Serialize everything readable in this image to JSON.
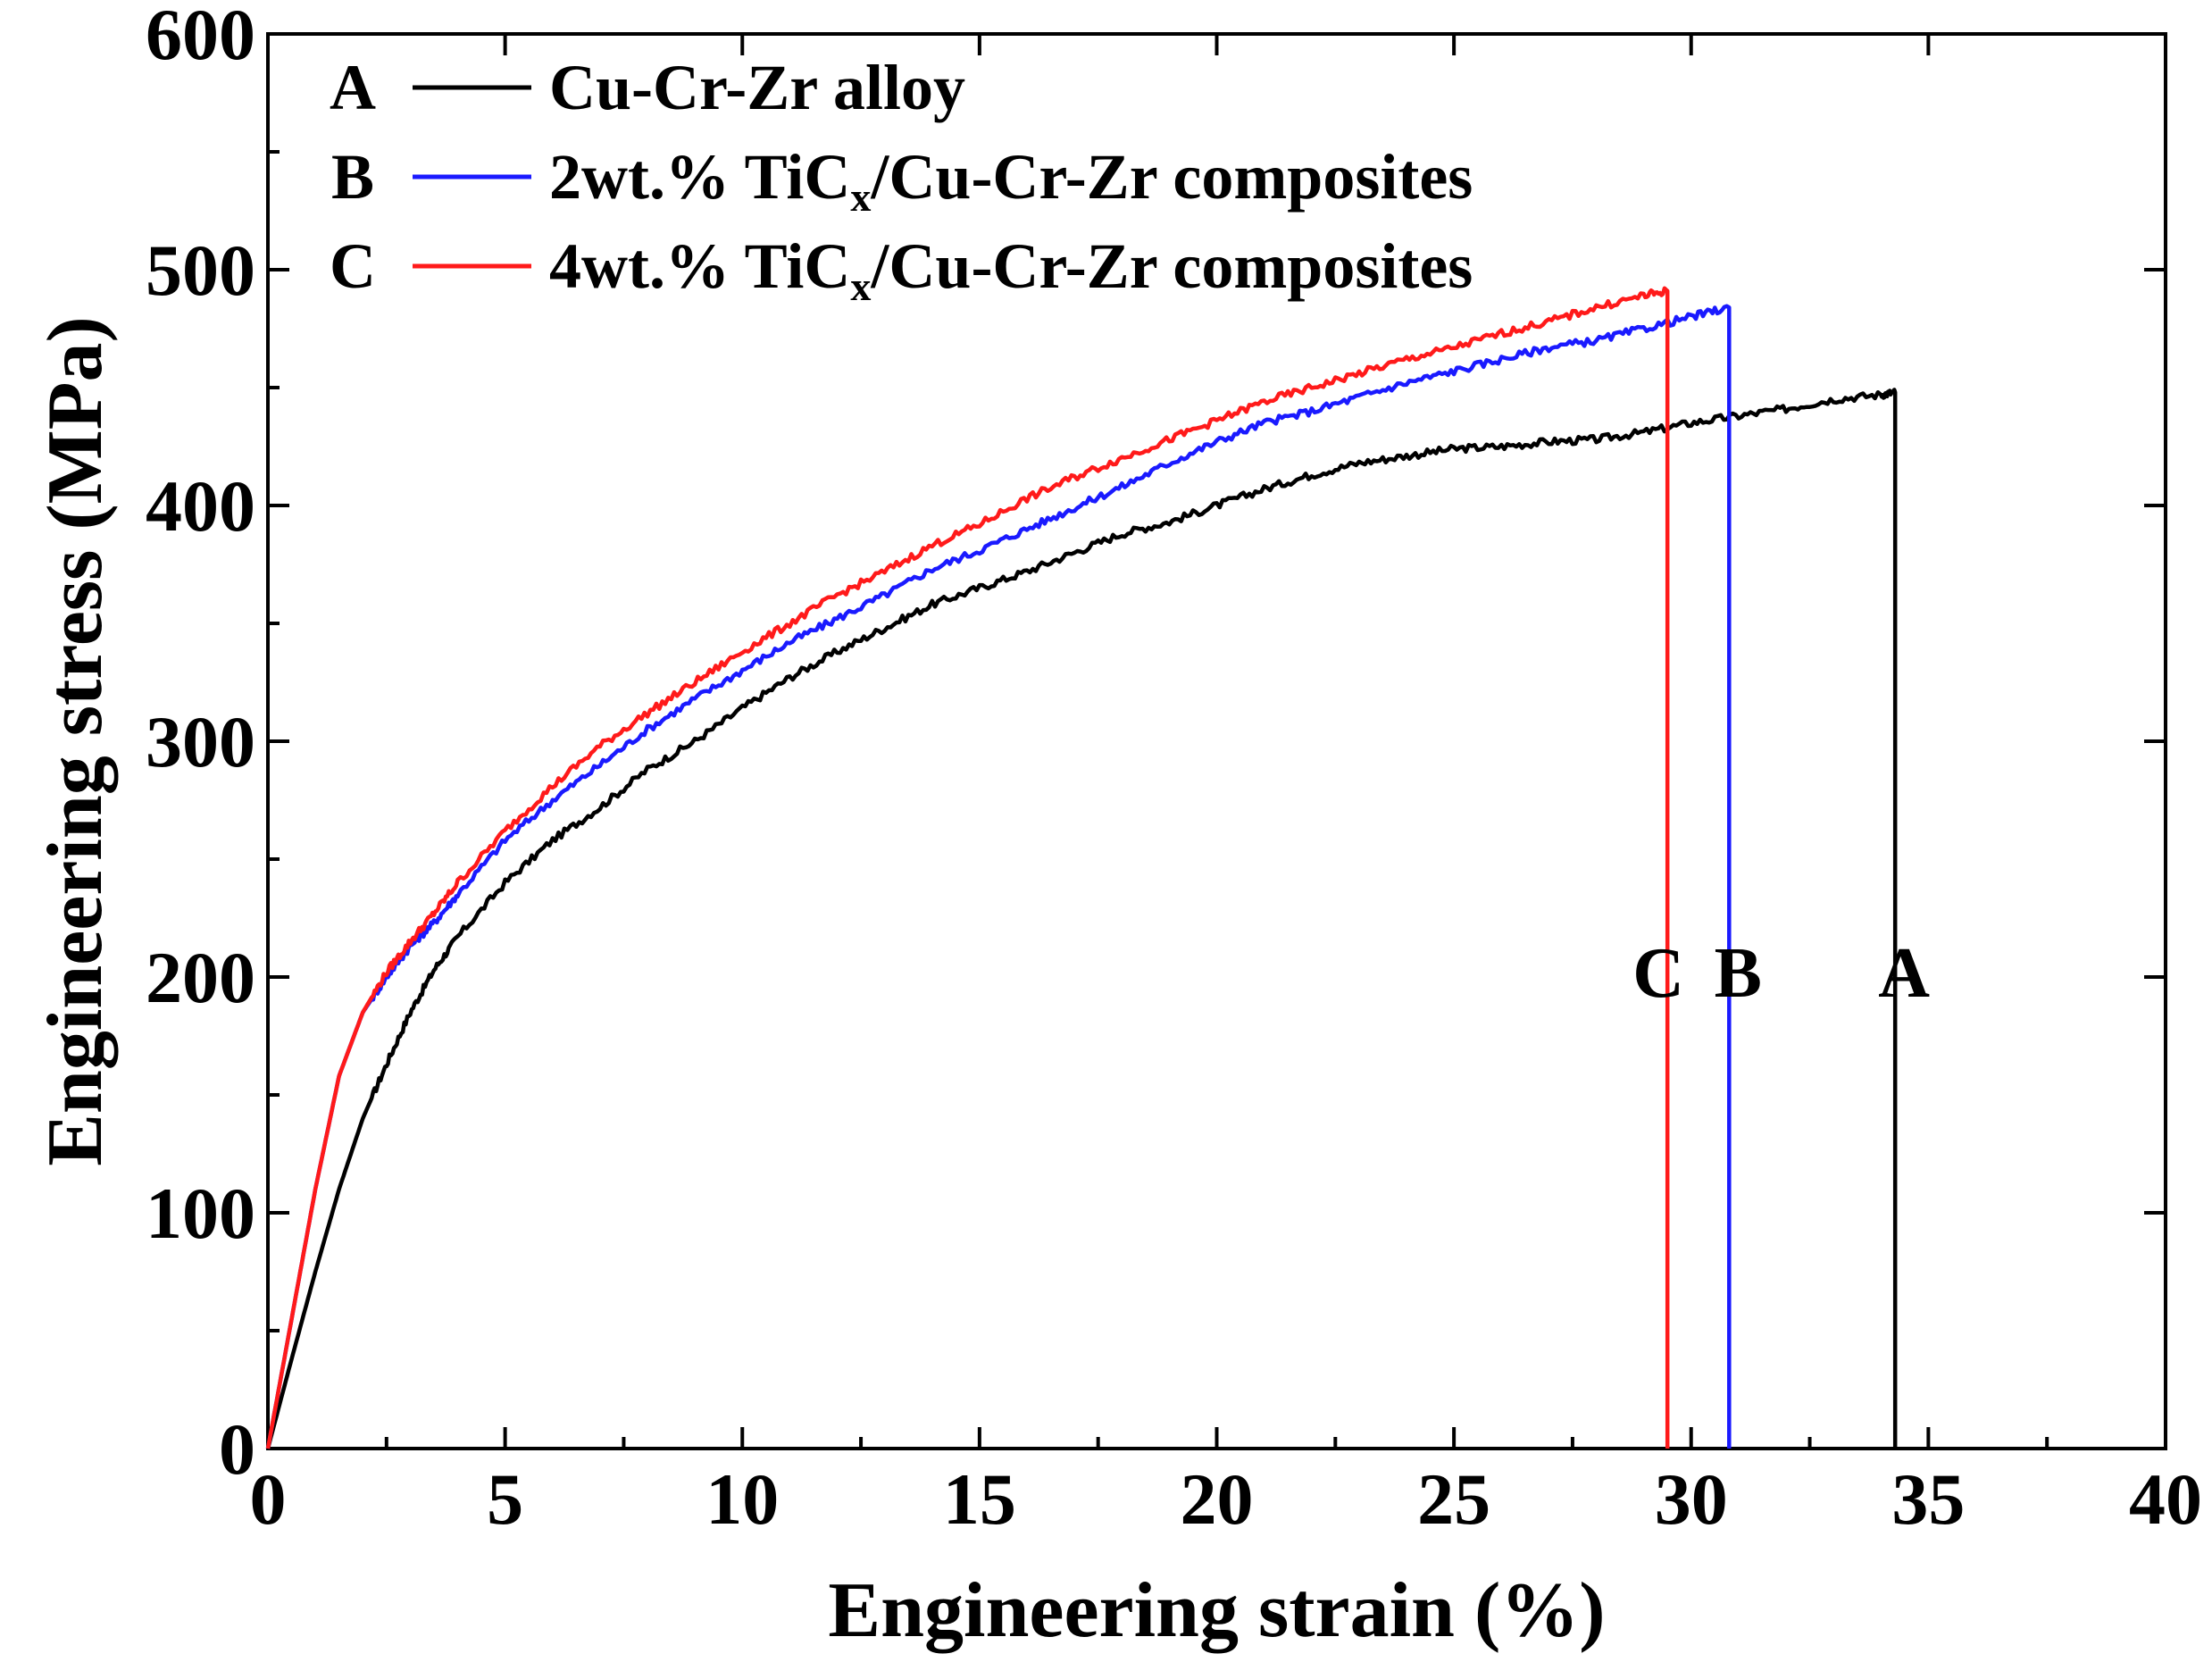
{
  "chart_data": {
    "type": "line",
    "title": "",
    "xlabel": "Engineering strain (%)",
    "ylabel": "Engineering stress (MPa)",
    "xlim": [
      0,
      40
    ],
    "ylim": [
      0,
      600
    ],
    "xticks": [
      0,
      5,
      10,
      15,
      20,
      25,
      30,
      35,
      40
    ],
    "yticks": [
      0,
      100,
      200,
      300,
      400,
      500,
      600
    ],
    "grid": false,
    "legend_position": "top-left",
    "series": [
      {
        "key": "A",
        "name": "Cu-Cr-Zr alloy",
        "color": "#000000",
        "fracture_strain": 34.3,
        "x": [
          0,
          0.5,
          1,
          1.5,
          2,
          2.5,
          3,
          3.5,
          4,
          5,
          6,
          7,
          8,
          9,
          10,
          11,
          12,
          13,
          14,
          15,
          16,
          17,
          18,
          19,
          20,
          21,
          22,
          23,
          24,
          25,
          26,
          27,
          28,
          29,
          30,
          31,
          32,
          33,
          34,
          34.3
        ],
        "y": [
          0,
          38,
          75,
          110,
          140,
          163,
          185,
          203,
          217,
          240,
          258,
          272,
          288,
          300,
          314,
          327,
          338,
          348,
          358,
          365,
          372,
          380,
          388,
          393,
          400,
          407,
          413,
          418,
          421,
          424,
          425,
          427,
          428,
          431,
          435,
          438,
          441,
          445,
          447,
          448
        ]
      },
      {
        "key": "B",
        "name": "2wt.% TiCx/Cu-Cr-Zr composites",
        "color": "#1a1aff",
        "fracture_strain": 30.8,
        "x": [
          0,
          0.5,
          1,
          1.5,
          2,
          2.5,
          3,
          3.5,
          4,
          5,
          6,
          7,
          8,
          9,
          10,
          11,
          12,
          13,
          14,
          15,
          16,
          17,
          18,
          19,
          20,
          21,
          22,
          23,
          24,
          25,
          26,
          27,
          28,
          29,
          30,
          30.8
        ],
        "y": [
          0,
          55,
          110,
          158,
          185,
          200,
          213,
          223,
          235,
          258,
          275,
          290,
          305,
          318,
          330,
          342,
          352,
          362,
          373,
          381,
          390,
          399,
          408,
          418,
          427,
          435,
          440,
          446,
          452,
          457,
          462,
          467,
          470,
          475,
          480,
          484
        ]
      },
      {
        "key": "C",
        "name": "4wt.% TiCx/Cu-Cr-Zr composites",
        "color": "#ff1a1a",
        "fracture_strain": 29.5,
        "x": [
          0,
          0.5,
          1,
          1.5,
          2,
          2.5,
          3,
          3.5,
          4,
          5,
          6,
          7,
          8,
          9,
          10,
          11,
          12,
          13,
          14,
          15,
          16,
          17,
          18,
          19,
          20,
          21,
          22,
          23,
          24,
          25,
          26,
          27,
          28,
          29,
          29.5
        ],
        "y": [
          0,
          55,
          110,
          158,
          185,
          202,
          215,
          227,
          240,
          262,
          281,
          298,
          312,
          325,
          338,
          350,
          362,
          372,
          383,
          392,
          403,
          412,
          420,
          428,
          436,
          444,
          450,
          456,
          462,
          467,
          473,
          478,
          484,
          489,
          491
        ]
      }
    ],
    "fracture_labels": [
      {
        "text": "C",
        "series": "C"
      },
      {
        "text": "B",
        "series": "B"
      },
      {
        "text": "A",
        "series": "A"
      }
    ]
  },
  "legend": {
    "items": [
      {
        "letter": "A",
        "label": "Cu-Cr-Zr alloy",
        "label_main": "Cu-Cr-Zr alloy",
        "label_sub": "",
        "label_tail": ""
      },
      {
        "letter": "B",
        "label": "2wt.% TiCx/Cu-Cr-Zr composites",
        "label_main": "2wt.% TiC",
        "label_sub": "x",
        "label_tail": "/Cu-Cr-Zr composites"
      },
      {
        "letter": "C",
        "label": "4wt.% TiCx/Cu-Cr-Zr composites",
        "label_main": "4wt.% TiC",
        "label_sub": "x",
        "label_tail": "/Cu-Cr-Zr composites"
      }
    ]
  }
}
